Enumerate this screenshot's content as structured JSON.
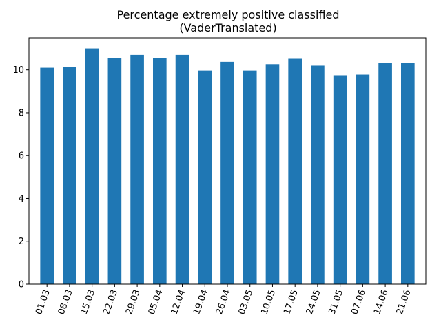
{
  "chart_data": {
    "type": "bar",
    "title": [
      "Percentage extremely positive classified",
      "(VaderTranslated)"
    ],
    "xlabel": "",
    "ylabel": "",
    "categories": [
      "01.03",
      "08.03",
      "15.03",
      "22.03",
      "29.03",
      "05.04",
      "12.04",
      "19.04",
      "26.04",
      "03.05",
      "10.05",
      "17.05",
      "24.05",
      "31.05",
      "07.06",
      "14.06",
      "21.06"
    ],
    "values": [
      10.1,
      10.15,
      11.0,
      10.55,
      10.7,
      10.55,
      10.7,
      9.97,
      10.38,
      9.97,
      10.27,
      10.52,
      10.2,
      9.75,
      9.78,
      10.33,
      10.33
    ],
    "ylim": [
      0,
      11.5
    ],
    "yticks": [
      0,
      2,
      4,
      6,
      8,
      10
    ],
    "grid": false,
    "bar_color": "#1f77b4",
    "xtick_rotation_deg": 70
  }
}
